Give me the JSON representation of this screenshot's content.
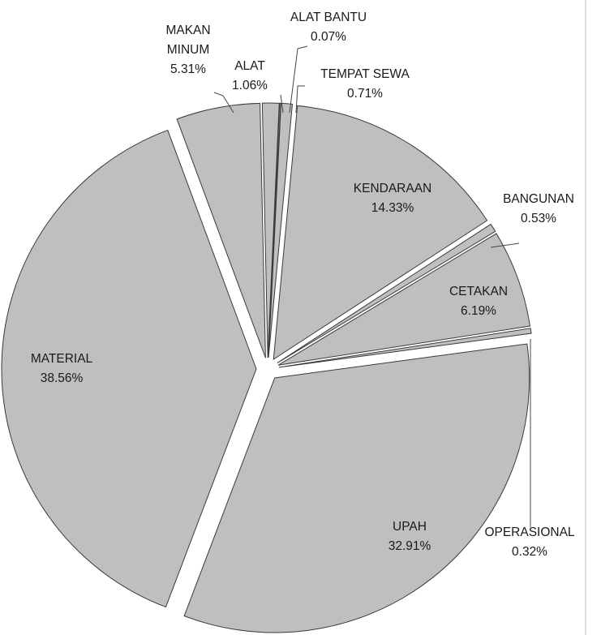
{
  "chart_data": {
    "type": "pie",
    "title": "",
    "slice_color": "#bfbfbf",
    "slices": [
      {
        "label": [
          "ALAT",
          "1.06%"
        ],
        "value": 1.06
      },
      {
        "label": [
          "ALAT BANTU",
          "0.07%"
        ],
        "value": 0.07
      },
      {
        "label": [
          "TEMPAT SEWA",
          "0.71%"
        ],
        "value": 0.71
      },
      {
        "label": [
          "KENDARAAN",
          "14.33%"
        ],
        "value": 14.33
      },
      {
        "label": [
          "BANGUNAN",
          "0.53%"
        ],
        "value": 0.53
      },
      {
        "label": [
          "CETAKAN",
          "6.19%"
        ],
        "value": 6.19
      },
      {
        "label": [
          "OPERASIONAL",
          "0.32%"
        ],
        "value": 0.32
      },
      {
        "label": [
          "UPAH",
          "32.91%"
        ],
        "value": 32.91
      },
      {
        "label": [
          "MATERIAL",
          "38.56%"
        ],
        "value": 38.56
      },
      {
        "label": [
          "MAKAN",
          "MINUM",
          "5.31%"
        ],
        "value": 5.31
      }
    ]
  }
}
